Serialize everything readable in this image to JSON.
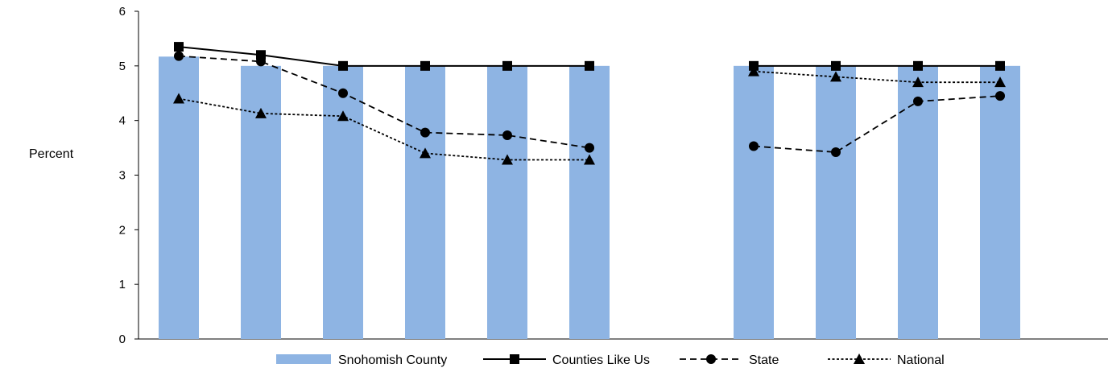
{
  "chart_data": {
    "type": "bar",
    "ylabel": "Percent",
    "ylim": [
      0,
      6
    ],
    "yticks": [
      0,
      1,
      2,
      3,
      4,
      5,
      6
    ],
    "grid": false,
    "legend_position": "bottom",
    "colors": {
      "bar": "#8eb4e3",
      "line": "#000000"
    },
    "categories": [
      "",
      "",
      "",
      "",
      "",
      "",
      "",
      "",
      "",
      "",
      ""
    ],
    "series": [
      {
        "name": "Snohomish County",
        "kind": "bar",
        "marker": "none",
        "dash": "solid",
        "values": [
          5.17,
          5.0,
          5.0,
          5.0,
          5.0,
          5.0,
          null,
          5.0,
          5.0,
          5.0,
          5.0
        ]
      },
      {
        "name": "Counties Like Us",
        "kind": "line",
        "marker": "square",
        "dash": "solid",
        "values": [
          5.35,
          5.2,
          5.0,
          5.0,
          5.0,
          5.0,
          null,
          5.0,
          5.0,
          5.0,
          5.0
        ]
      },
      {
        "name": "State",
        "kind": "line",
        "marker": "circle",
        "dash": "dashed",
        "values": [
          5.18,
          5.08,
          4.5,
          3.78,
          3.73,
          3.5,
          null,
          3.53,
          3.42,
          4.35,
          4.45
        ]
      },
      {
        "name": "National",
        "kind": "line",
        "marker": "triangle",
        "dash": "dotted",
        "values": [
          4.4,
          4.13,
          4.08,
          3.4,
          3.28,
          3.28,
          null,
          4.9,
          4.8,
          4.7,
          4.7
        ]
      }
    ]
  }
}
